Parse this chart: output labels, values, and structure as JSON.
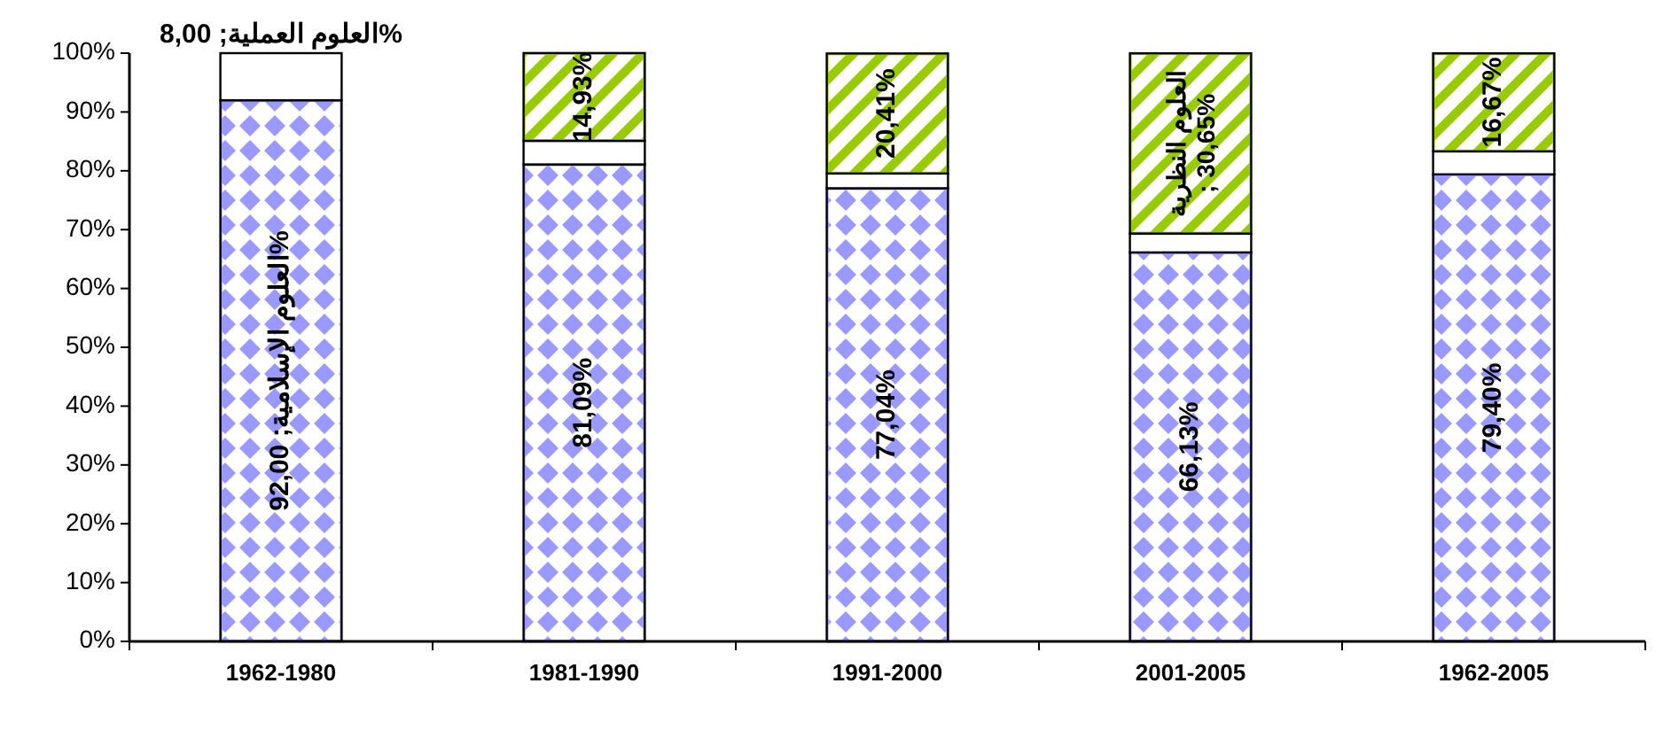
{
  "chart_data": {
    "type": "bar",
    "stacked": true,
    "categories": [
      "1962-1980",
      "1981-1990",
      "1991-2000",
      "2001-2005",
      "1962-2005"
    ],
    "series": [
      {
        "color": "#9999ff",
        "values": [
          92.0,
          81.09,
          77.04,
          66.13,
          79.4
        ],
        "value_labels": [
          "العلوم الإسلامية; 92,00%",
          "81,09%",
          "77,04%",
          "66,13%",
          "79,40%"
        ]
      },
      {
        "color": "#ffffff",
        "values": [
          8.0,
          4.0,
          2.5,
          3.2,
          3.9
        ],
        "value_labels": [
          "العلوم العملية; 8,00%",
          null,
          null,
          null,
          null
        ]
      },
      {
        "color": "#99cc00",
        "values": [
          null,
          14.93,
          20.41,
          30.65,
          16.67
        ],
        "value_labels": [
          null,
          "14,93%",
          "20,41%",
          "العلوم النظرية; 30,65%",
          "16,67%"
        ]
      }
    ],
    "ylim": [
      0,
      100
    ],
    "yticks": [
      {
        "value": 0,
        "label": "0%"
      },
      {
        "value": 10,
        "label": "10%"
      },
      {
        "value": 20,
        "label": "20%"
      },
      {
        "value": 30,
        "label": "30%"
      },
      {
        "value": 40,
        "label": "40%"
      },
      {
        "value": 50,
        "label": "50%"
      },
      {
        "value": 60,
        "label": "60%"
      },
      {
        "value": 70,
        "label": "70%"
      },
      {
        "value": 80,
        "label": "80%"
      },
      {
        "value": 90,
        "label": "90%"
      },
      {
        "value": 100,
        "label": "100%"
      }
    ],
    "grid": false
  }
}
